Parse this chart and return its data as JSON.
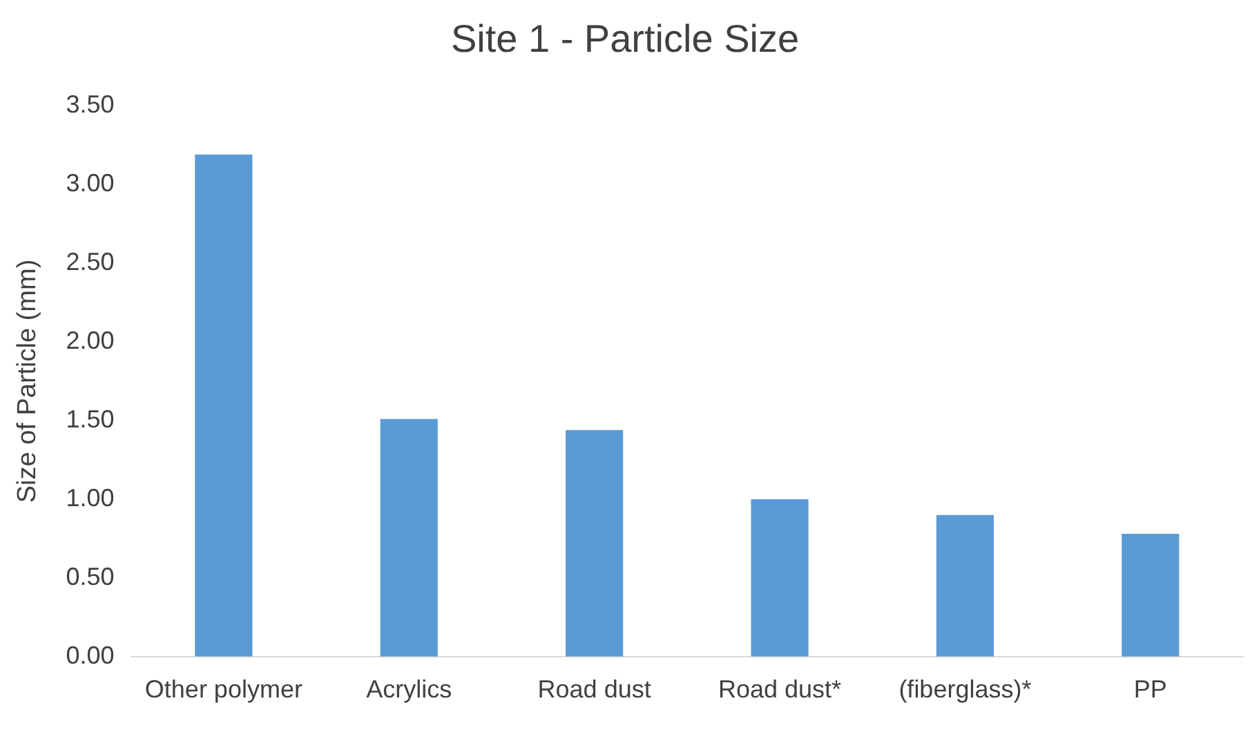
{
  "chart_data": {
    "type": "bar",
    "title": "Site 1 - Particle Size",
    "ylabel": "Size of Particle (mm)",
    "categories": [
      "Other polymer",
      "Acrylics",
      "Road dust",
      "Road dust*",
      "(fiberglass)*",
      "PP"
    ],
    "values": [
      3.19,
      1.51,
      1.44,
      1.0,
      0.9,
      0.78
    ],
    "color": "#5b9bd5",
    "ylim": [
      0,
      3.5
    ],
    "yticks": [
      {
        "value": 0,
        "label": "0.00"
      },
      {
        "value": 0.5,
        "label": "0.50"
      },
      {
        "value": 1,
        "label": "1.00"
      },
      {
        "value": 1.5,
        "label": "1.50"
      },
      {
        "value": 2,
        "label": "2.00"
      },
      {
        "value": 2.5,
        "label": "2.50"
      },
      {
        "value": 3,
        "label": "3.00"
      },
      {
        "value": 3.5,
        "label": "3.50"
      }
    ],
    "grid": false,
    "legend": false
  }
}
